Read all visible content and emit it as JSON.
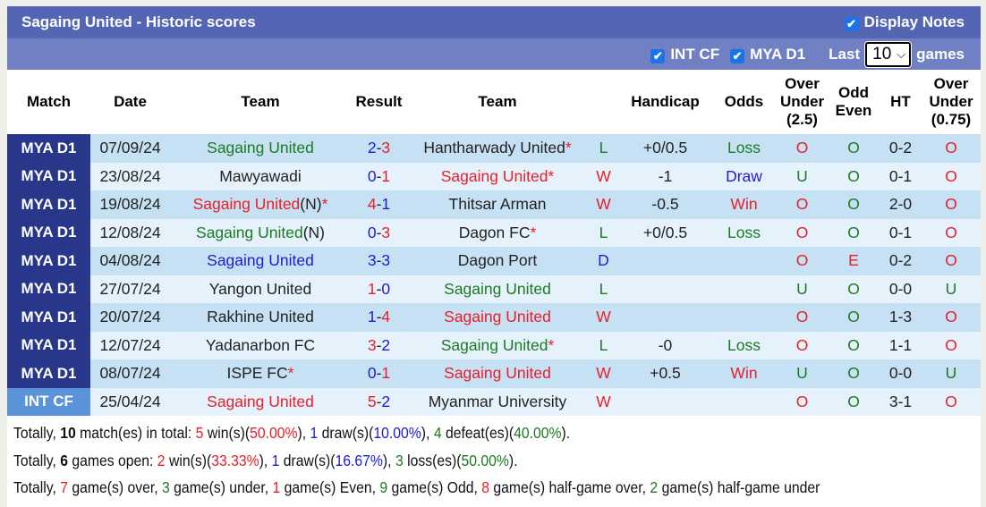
{
  "header": {
    "title": "Sagaing United - Historic scores",
    "display_notes_label": "Display Notes",
    "display_notes_checked": true
  },
  "filters": {
    "int_cf_label": "INT CF",
    "int_cf_checked": true,
    "mya_d1_label": "MYA D1",
    "mya_d1_checked": true,
    "last_label": "Last",
    "games_select_value": "10",
    "games_label": "games"
  },
  "columns": [
    "Match",
    "Date",
    "Team",
    "Result",
    "Team",
    "",
    "Handicap",
    "Odds",
    "Over Under (2.5)",
    "Odd Even",
    "HT",
    "Over Under (0.75)"
  ],
  "colors": {
    "green": "#1d7a22",
    "red": "#e4202a",
    "blue": "#1c1cd0",
    "match_bg": "#28378a",
    "int_bg": "#5b93d8",
    "title_bg": "#5466b3",
    "filter_bg": "#7180c2"
  },
  "rows": [
    {
      "match": "MYA D1",
      "date": "07/09/24",
      "home": {
        "name": "Sagaing United",
        "color": "green",
        "suffix": "",
        "star": false
      },
      "hs": {
        "v": "2",
        "c": "blue"
      },
      "as": {
        "v": "3",
        "c": "red"
      },
      "away": {
        "name": "Hantharwady United",
        "color": "black",
        "suffix": "",
        "star": true
      },
      "wl": {
        "v": "L",
        "c": "green"
      },
      "handicap": "+0/0.5",
      "odds": {
        "v": "Loss",
        "c": "green"
      },
      "ou": {
        "v": "O",
        "c": "red"
      },
      "oe": {
        "v": "O",
        "c": "green"
      },
      "ht": "0-2",
      "ou075": {
        "v": "O",
        "c": "red"
      }
    },
    {
      "match": "MYA D1",
      "date": "23/08/24",
      "home": {
        "name": "Mawyawadi",
        "color": "black",
        "suffix": "",
        "star": false
      },
      "hs": {
        "v": "0",
        "c": "blue"
      },
      "as": {
        "v": "1",
        "c": "red"
      },
      "away": {
        "name": "Sagaing United",
        "color": "red",
        "suffix": "",
        "star": true
      },
      "wl": {
        "v": "W",
        "c": "red"
      },
      "handicap": "-1",
      "odds": {
        "v": "Draw",
        "c": "blue"
      },
      "ou": {
        "v": "U",
        "c": "green"
      },
      "oe": {
        "v": "O",
        "c": "green"
      },
      "ht": "0-1",
      "ou075": {
        "v": "O",
        "c": "red"
      }
    },
    {
      "match": "MYA D1",
      "date": "19/08/24",
      "home": {
        "name": "Sagaing United",
        "color": "red",
        "suffix": "(N)",
        "star": true
      },
      "hs": {
        "v": "4",
        "c": "red"
      },
      "as": {
        "v": "1",
        "c": "blue"
      },
      "away": {
        "name": "Thitsar Arman",
        "color": "black",
        "suffix": "",
        "star": false
      },
      "wl": {
        "v": "W",
        "c": "red"
      },
      "handicap": "-0.5",
      "odds": {
        "v": "Win",
        "c": "red"
      },
      "ou": {
        "v": "O",
        "c": "red"
      },
      "oe": {
        "v": "O",
        "c": "green"
      },
      "ht": "2-0",
      "ou075": {
        "v": "O",
        "c": "red"
      }
    },
    {
      "match": "MYA D1",
      "date": "12/08/24",
      "home": {
        "name": "Sagaing United",
        "color": "green",
        "suffix": "(N)",
        "star": false
      },
      "hs": {
        "v": "0",
        "c": "blue"
      },
      "as": {
        "v": "3",
        "c": "red"
      },
      "away": {
        "name": "Dagon FC",
        "color": "black",
        "suffix": "",
        "star": true
      },
      "wl": {
        "v": "L",
        "c": "green"
      },
      "handicap": "+0/0.5",
      "odds": {
        "v": "Loss",
        "c": "green"
      },
      "ou": {
        "v": "O",
        "c": "red"
      },
      "oe": {
        "v": "O",
        "c": "green"
      },
      "ht": "0-1",
      "ou075": {
        "v": "O",
        "c": "red"
      }
    },
    {
      "match": "MYA D1",
      "date": "04/08/24",
      "home": {
        "name": "Sagaing United",
        "color": "blue",
        "suffix": "",
        "star": false
      },
      "hs": {
        "v": "3",
        "c": "blue"
      },
      "as": {
        "v": "3",
        "c": "blue"
      },
      "away": {
        "name": "Dagon Port",
        "color": "black",
        "suffix": "",
        "star": false
      },
      "wl": {
        "v": "D",
        "c": "blue"
      },
      "handicap": "",
      "odds": {
        "v": "",
        "c": "black"
      },
      "ou": {
        "v": "O",
        "c": "red"
      },
      "oe": {
        "v": "E",
        "c": "red"
      },
      "ht": "0-2",
      "ou075": {
        "v": "O",
        "c": "red"
      }
    },
    {
      "match": "MYA D1",
      "date": "27/07/24",
      "home": {
        "name": "Yangon United",
        "color": "black",
        "suffix": "",
        "star": false
      },
      "hs": {
        "v": "1",
        "c": "red"
      },
      "as": {
        "v": "0",
        "c": "blue"
      },
      "away": {
        "name": "Sagaing United",
        "color": "green",
        "suffix": "",
        "star": false
      },
      "wl": {
        "v": "L",
        "c": "green"
      },
      "handicap": "",
      "odds": {
        "v": "",
        "c": "black"
      },
      "ou": {
        "v": "U",
        "c": "green"
      },
      "oe": {
        "v": "O",
        "c": "green"
      },
      "ht": "0-0",
      "ou075": {
        "v": "U",
        "c": "green"
      }
    },
    {
      "match": "MYA D1",
      "date": "20/07/24",
      "home": {
        "name": "Rakhine United",
        "color": "black",
        "suffix": "",
        "star": false
      },
      "hs": {
        "v": "1",
        "c": "blue"
      },
      "as": {
        "v": "4",
        "c": "red"
      },
      "away": {
        "name": "Sagaing United",
        "color": "red",
        "suffix": "",
        "star": false
      },
      "wl": {
        "v": "W",
        "c": "red"
      },
      "handicap": "",
      "odds": {
        "v": "",
        "c": "black"
      },
      "ou": {
        "v": "O",
        "c": "red"
      },
      "oe": {
        "v": "O",
        "c": "green"
      },
      "ht": "1-3",
      "ou075": {
        "v": "O",
        "c": "red"
      }
    },
    {
      "match": "MYA D1",
      "date": "12/07/24",
      "home": {
        "name": "Yadanarbon FC",
        "color": "black",
        "suffix": "",
        "star": false
      },
      "hs": {
        "v": "3",
        "c": "red"
      },
      "as": {
        "v": "2",
        "c": "blue"
      },
      "away": {
        "name": "Sagaing United",
        "color": "green",
        "suffix": "",
        "star": true
      },
      "wl": {
        "v": "L",
        "c": "green"
      },
      "handicap": "-0",
      "odds": {
        "v": "Loss",
        "c": "green"
      },
      "ou": {
        "v": "O",
        "c": "red"
      },
      "oe": {
        "v": "O",
        "c": "green"
      },
      "ht": "1-1",
      "ou075": {
        "v": "O",
        "c": "red"
      }
    },
    {
      "match": "MYA D1",
      "date": "08/07/24",
      "home": {
        "name": "ISPE FC",
        "color": "black",
        "suffix": "",
        "star": true
      },
      "hs": {
        "v": "0",
        "c": "blue"
      },
      "as": {
        "v": "1",
        "c": "red"
      },
      "away": {
        "name": "Sagaing United",
        "color": "red",
        "suffix": "",
        "star": false
      },
      "wl": {
        "v": "W",
        "c": "red"
      },
      "handicap": "+0.5",
      "odds": {
        "v": "Win",
        "c": "red"
      },
      "ou": {
        "v": "U",
        "c": "green"
      },
      "oe": {
        "v": "O",
        "c": "green"
      },
      "ht": "0-0",
      "ou075": {
        "v": "U",
        "c": "green"
      }
    },
    {
      "match": "INT CF",
      "date": "25/04/24",
      "home": {
        "name": "Sagaing United",
        "color": "red",
        "suffix": "",
        "star": false
      },
      "hs": {
        "v": "5",
        "c": "red"
      },
      "as": {
        "v": "2",
        "c": "blue"
      },
      "away": {
        "name": "Myanmar University",
        "color": "black",
        "suffix": "",
        "star": false
      },
      "wl": {
        "v": "W",
        "c": "red"
      },
      "handicap": "",
      "odds": {
        "v": "",
        "c": "black"
      },
      "ou": {
        "v": "O",
        "c": "red"
      },
      "oe": {
        "v": "O",
        "c": "green"
      },
      "ht": "3-1",
      "ou075": {
        "v": "O",
        "c": "red"
      }
    }
  ],
  "summary": [
    [
      {
        "t": "Totally, "
      },
      {
        "t": "10",
        "b": true
      },
      {
        "t": " match(es) in total: "
      },
      {
        "t": "5",
        "c": "red"
      },
      {
        "t": " win(s)("
      },
      {
        "t": "50.00%",
        "c": "red"
      },
      {
        "t": "), "
      },
      {
        "t": "1",
        "c": "blue"
      },
      {
        "t": " draw(s)("
      },
      {
        "t": "10.00%",
        "c": "blue"
      },
      {
        "t": "), "
      },
      {
        "t": "4",
        "c": "green"
      },
      {
        "t": " defeat(es)("
      },
      {
        "t": "40.00%",
        "c": "green"
      },
      {
        "t": ")."
      }
    ],
    [
      {
        "t": "Totally, "
      },
      {
        "t": "6",
        "b": true
      },
      {
        "t": " games open: "
      },
      {
        "t": "2",
        "c": "red"
      },
      {
        "t": " win(s)("
      },
      {
        "t": "33.33%",
        "c": "red"
      },
      {
        "t": "), "
      },
      {
        "t": "1",
        "c": "blue"
      },
      {
        "t": " draw(s)("
      },
      {
        "t": "16.67%",
        "c": "blue"
      },
      {
        "t": "), "
      },
      {
        "t": "3",
        "c": "green"
      },
      {
        "t": " loss(es)("
      },
      {
        "t": "50.00%",
        "c": "green"
      },
      {
        "t": ")."
      }
    ],
    [
      {
        "t": "Totally, "
      },
      {
        "t": "7",
        "c": "red"
      },
      {
        "t": " game(s) over, "
      },
      {
        "t": "3",
        "c": "green"
      },
      {
        "t": " game(s) under, "
      },
      {
        "t": "1",
        "c": "red"
      },
      {
        "t": " game(s) Even, "
      },
      {
        "t": "9",
        "c": "green"
      },
      {
        "t": " game(s) Odd, "
      },
      {
        "t": "8",
        "c": "red"
      },
      {
        "t": " game(s) half-game over, "
      },
      {
        "t": "2",
        "c": "green"
      },
      {
        "t": " game(s) half-game under"
      }
    ]
  ]
}
